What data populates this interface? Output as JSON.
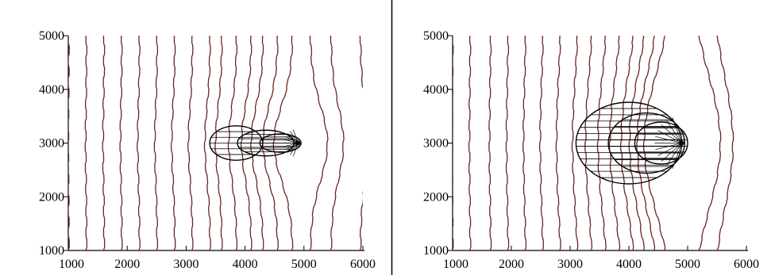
{
  "colors": {
    "contour": "#6b2424",
    "front": "#000000",
    "frame": "#000000"
  },
  "chart_data": [
    {
      "type": "contour",
      "panel": "left",
      "xlim": [
        1000,
        6000
      ],
      "ylim": [
        1000,
        5000
      ],
      "x_ticks": [
        "1000",
        "2000",
        "3000",
        "4000",
        "5000",
        "6000"
      ],
      "y_ticks": [
        "1000",
        "2000",
        "3000",
        "4000",
        "5000"
      ],
      "grid": false,
      "contour_x": [
        1000,
        1300,
        1600,
        1900,
        2200,
        2500,
        2800,
        3100,
        3400,
        3600,
        3850,
        4100,
        4300,
        4550,
        4800,
        5100,
        5450,
        5950
      ],
      "source_point": [
        4900,
        3000
      ],
      "front_ellipses": [
        {
          "center": [
            3850,
            3000
          ],
          "radius_x": 450,
          "radius_y": 320
        },
        {
          "center": [
            4350,
            3000
          ],
          "radius_x": 480,
          "radius_y": 240
        },
        {
          "center": [
            4600,
            3000
          ],
          "radius_x": 350,
          "radius_y": 170
        }
      ]
    },
    {
      "type": "contour",
      "panel": "right",
      "xlim": [
        1000,
        6000
      ],
      "ylim": [
        1000,
        5000
      ],
      "x_ticks": [
        "1000",
        "2000",
        "3000",
        "4000",
        "5000",
        "6000"
      ],
      "y_ticks": [
        "1000",
        "2000",
        "3000",
        "4000",
        "5000"
      ],
      "grid": false,
      "contour_x": [
        1000,
        1300,
        1650,
        1950,
        2250,
        2550,
        2850,
        3150,
        3400,
        3650,
        3900,
        4150,
        4350,
        4550,
        4750,
        5050,
        5400,
        5950
      ],
      "source_point": [
        4900,
        3000
      ],
      "front_ellipses": [
        {
          "center": [
            4000,
            3000
          ],
          "radius_x": 900,
          "radius_y": 760
        },
        {
          "center": [
            4300,
            3000
          ],
          "radius_x": 650,
          "radius_y": 560
        },
        {
          "center": [
            4550,
            3000
          ],
          "radius_x": 450,
          "radius_y": 390
        }
      ]
    }
  ]
}
